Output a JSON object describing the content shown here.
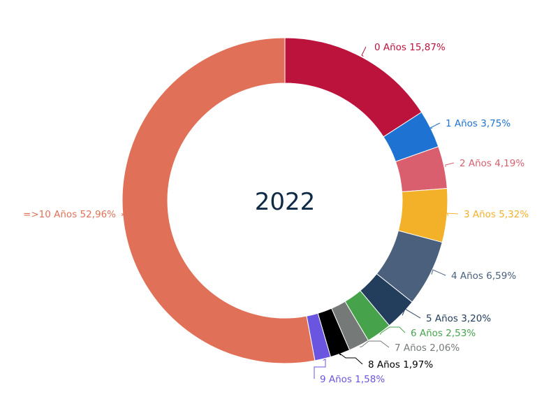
{
  "chart_data": {
    "type": "pie",
    "variant": "donut",
    "center_label": "2022",
    "slices": [
      {
        "label": "0 Años",
        "value": 15.87,
        "display": "0 Años 15,87%",
        "color": "#bc133c"
      },
      {
        "label": "1 Años",
        "value": 3.75,
        "display": "1 Años 3,75%",
        "color": "#1e73d2"
      },
      {
        "label": "2 Años",
        "value": 4.19,
        "display": "2 Años 4,19%",
        "color": "#d95f6f"
      },
      {
        "label": "3 Años",
        "value": 5.32,
        "display": "3 Años 5,32%",
        "color": "#f3b12a"
      },
      {
        "label": "4 Años",
        "value": 6.59,
        "display": "4 Años 6,59%",
        "color": "#4a607d"
      },
      {
        "label": "5 Años",
        "value": 3.2,
        "display": "5 Años 3,20%",
        "color": "#233d5c"
      },
      {
        "label": "6 Años",
        "value": 2.53,
        "display": "6 Años 2,53%",
        "color": "#46a34c"
      },
      {
        "label": "7 Años",
        "value": 2.06,
        "display": "7 Años 2,06%",
        "color": "#757a78"
      },
      {
        "label": "8 Años",
        "value": 1.97,
        "display": "8 Años 1,97%",
        "color": "#000000"
      },
      {
        "label": "9 Años",
        "value": 1.58,
        "display": "9 Años 1,58%",
        "color": "#6a55e0"
      },
      {
        "label": "=>10 Años",
        "value": 52.96,
        "display": "=>10 Años 52,96%",
        "color": "#e07158"
      }
    ],
    "legend": "none"
  }
}
